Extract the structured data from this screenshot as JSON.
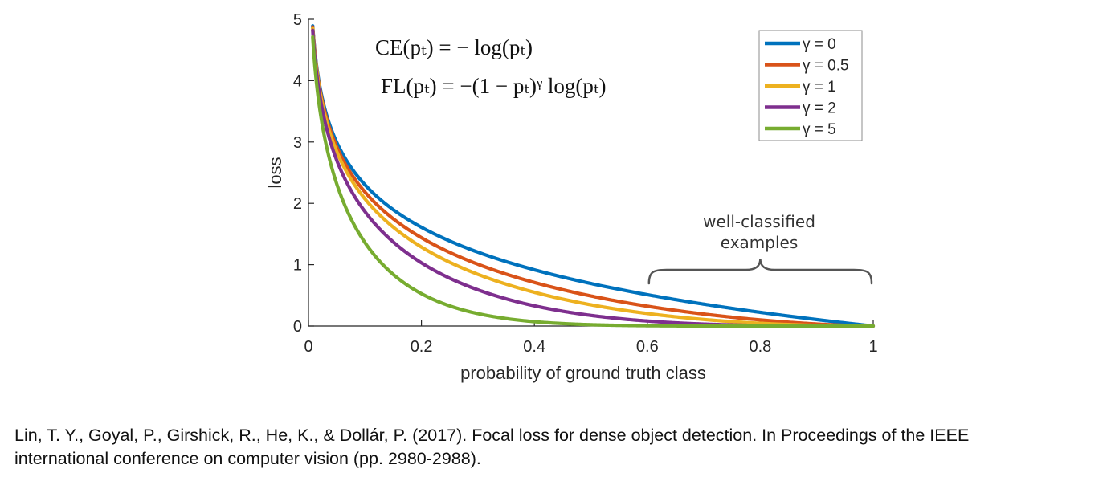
{
  "chart_data": {
    "type": "line",
    "xlabel": "probability of ground truth class",
    "ylabel": "loss",
    "xlim": [
      0,
      1
    ],
    "ylim": [
      0,
      5
    ],
    "xticks": [
      0,
      0.2,
      0.4,
      0.6,
      0.8,
      1
    ],
    "xtick_labels": [
      "0",
      "0.2",
      "0.4",
      "0.6",
      "0.8",
      "1"
    ],
    "yticks": [
      0,
      1,
      2,
      3,
      4,
      5
    ],
    "ytick_labels": [
      "0",
      "1",
      "2",
      "3",
      "4",
      "5"
    ],
    "grid": false,
    "legend_position": "top-right",
    "series": [
      {
        "name": "γ = 0",
        "gamma": 0,
        "color": "#0072BD",
        "x": [
          0.01,
          0.02,
          0.03,
          0.05,
          0.07,
          0.1,
          0.15,
          0.2,
          0.3,
          0.4,
          0.5,
          0.6,
          0.7,
          0.8,
          0.9,
          1.0
        ],
        "values": [
          4.605,
          3.912,
          3.507,
          2.996,
          2.659,
          2.303,
          1.897,
          1.609,
          1.204,
          0.916,
          0.693,
          0.511,
          0.357,
          0.223,
          0.105,
          0.0
        ]
      },
      {
        "name": "γ = 0.5",
        "gamma": 0.5,
        "color": "#D95319",
        "x": [
          0.01,
          0.02,
          0.03,
          0.05,
          0.07,
          0.1,
          0.15,
          0.2,
          0.3,
          0.4,
          0.5,
          0.6,
          0.7,
          0.8,
          0.9,
          1.0
        ],
        "values": [
          4.582,
          3.873,
          3.454,
          2.92,
          2.565,
          2.184,
          1.749,
          1.44,
          1.007,
          0.71,
          0.49,
          0.323,
          0.196,
          0.1,
          0.033,
          0.0
        ]
      },
      {
        "name": "γ = 1",
        "gamma": 1,
        "color": "#EDB120",
        "x": [
          0.01,
          0.02,
          0.03,
          0.05,
          0.07,
          0.1,
          0.15,
          0.2,
          0.3,
          0.4,
          0.5,
          0.6,
          0.7,
          0.8,
          0.9,
          1.0
        ],
        "values": [
          4.559,
          3.834,
          3.402,
          2.846,
          2.473,
          2.072,
          1.612,
          1.288,
          0.843,
          0.55,
          0.347,
          0.204,
          0.107,
          0.045,
          0.011,
          0.0
        ]
      },
      {
        "name": "γ = 2",
        "gamma": 2,
        "color": "#7E2F8E",
        "x": [
          0.01,
          0.02,
          0.03,
          0.05,
          0.07,
          0.1,
          0.15,
          0.2,
          0.3,
          0.4,
          0.5,
          0.6,
          0.7,
          0.8,
          0.9,
          1.0
        ],
        "values": [
          4.514,
          3.757,
          3.3,
          2.704,
          2.3,
          1.865,
          1.371,
          1.03,
          0.59,
          0.33,
          0.173,
          0.082,
          0.032,
          0.009,
          0.001,
          0.0
        ]
      },
      {
        "name": "γ = 5",
        "gamma": 5,
        "color": "#77AC30",
        "x": [
          0.01,
          0.02,
          0.03,
          0.05,
          0.07,
          0.1,
          0.15,
          0.2,
          0.3,
          0.4,
          0.5,
          0.6,
          0.7,
          0.8,
          0.9,
          1.0
        ],
        "values": [
          4.38,
          3.539,
          3.011,
          2.32,
          1.847,
          1.36,
          0.842,
          0.527,
          0.202,
          0.071,
          0.022,
          0.005,
          0.001,
          0.0,
          0.0,
          0.0
        ]
      }
    ],
    "formulas": [
      "CE(pₜ) = − log(pₜ)",
      "FL(pₜ) = −(1 − pₜ)ᵞ log(pₜ)"
    ],
    "annotation": {
      "lines": [
        "well-classified",
        "examples"
      ],
      "x_range": [
        0.6,
        1.0
      ]
    }
  },
  "caption": {
    "line1": "Lin, T. Y., Goyal, P., Girshick, R., He, K., & Dollár, P. (2017). Focal loss for dense object detection. In Proceedings of the IEEE",
    "line2": "international conference on computer vision (pp. 2980-2988)."
  }
}
